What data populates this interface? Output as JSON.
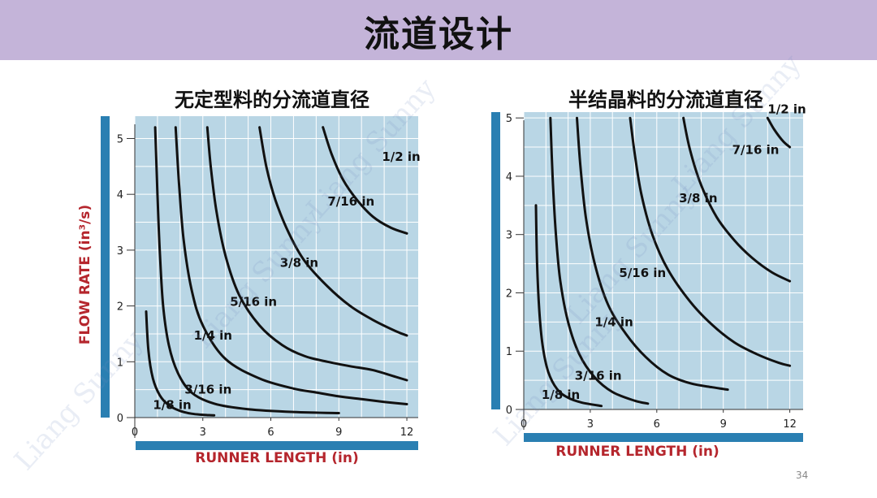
{
  "page": {
    "title": "流道设计",
    "page_number": "34"
  },
  "chart_data": [
    {
      "type": "line",
      "title": "无定型料的分流道直径",
      "xlabel": "RUNNER LENGTH (in)",
      "ylabel": "FLOW RATE (in³/s)",
      "xlim": [
        0,
        12.5
      ],
      "ylim": [
        0,
        5.4
      ],
      "xticks": [
        0,
        3,
        6,
        9,
        12
      ],
      "yticks": [
        0,
        1,
        2,
        3,
        4,
        5
      ],
      "series": [
        {
          "name": "1/8 in",
          "label": {
            "x": 0.8,
            "y": 0.15
          },
          "points": [
            [
              0.5,
              1.9
            ],
            [
              0.6,
              1.2
            ],
            [
              0.8,
              0.7
            ],
            [
              1.1,
              0.4
            ],
            [
              1.5,
              0.22
            ],
            [
              2.0,
              0.12
            ],
            [
              2.5,
              0.07
            ],
            [
              3.0,
              0.05
            ],
            [
              3.5,
              0.04
            ]
          ]
        },
        {
          "name": "3/16 in",
          "label": {
            "x": 2.2,
            "y": 0.43
          },
          "points": [
            [
              0.9,
              5.2
            ],
            [
              1.0,
              4.0
            ],
            [
              1.1,
              3.0
            ],
            [
              1.25,
              2.0
            ],
            [
              1.5,
              1.3
            ],
            [
              1.9,
              0.8
            ],
            [
              2.5,
              0.45
            ],
            [
              3.5,
              0.25
            ],
            [
              5.0,
              0.15
            ],
            [
              7.0,
              0.1
            ],
            [
              9.0,
              0.08
            ]
          ]
        },
        {
          "name": "1/4 in",
          "label": {
            "x": 2.6,
            "y": 1.4
          },
          "points": [
            [
              1.8,
              5.2
            ],
            [
              1.95,
              4.2
            ],
            [
              2.15,
              3.2
            ],
            [
              2.5,
              2.3
            ],
            [
              3.0,
              1.65
            ],
            [
              4.0,
              1.05
            ],
            [
              5.5,
              0.7
            ],
            [
              7.0,
              0.52
            ],
            [
              8.0,
              0.45
            ],
            [
              9.0,
              0.38
            ],
            [
              10.0,
              0.33
            ],
            [
              11.0,
              0.28
            ],
            [
              12.0,
              0.24
            ]
          ]
        },
        {
          "name": "5/16 in",
          "label": {
            "x": 4.2,
            "y": 2.0
          },
          "points": [
            [
              3.2,
              5.2
            ],
            [
              3.35,
              4.5
            ],
            [
              3.6,
              3.7
            ],
            [
              4.0,
              2.9
            ],
            [
              4.6,
              2.2
            ],
            [
              5.5,
              1.65
            ],
            [
              6.5,
              1.3
            ],
            [
              7.5,
              1.1
            ],
            [
              8.5,
              1.0
            ],
            [
              9.5,
              0.92
            ],
            [
              10.5,
              0.85
            ],
            [
              11.5,
              0.73
            ],
            [
              12.0,
              0.67
            ]
          ]
        },
        {
          "name": "3/8 in",
          "label": {
            "x": 6.4,
            "y": 2.7
          },
          "points": [
            [
              5.5,
              5.2
            ],
            [
              5.8,
              4.5
            ],
            [
              6.2,
              3.9
            ],
            [
              6.8,
              3.3
            ],
            [
              7.5,
              2.8
            ],
            [
              8.5,
              2.35
            ],
            [
              9.5,
              2.0
            ],
            [
              10.5,
              1.75
            ],
            [
              11.5,
              1.55
            ],
            [
              12.0,
              1.47
            ]
          ]
        },
        {
          "name": "7/16 in",
          "label": {
            "x": 8.5,
            "y": 3.8
          },
          "points": [
            [
              8.3,
              5.2
            ],
            [
              8.7,
              4.7
            ],
            [
              9.2,
              4.25
            ],
            [
              9.8,
              3.9
            ],
            [
              10.5,
              3.6
            ],
            [
              11.3,
              3.4
            ],
            [
              12.0,
              3.3
            ]
          ]
        },
        {
          "name": "1/2 in",
          "label": {
            "x": 10.9,
            "y": 4.6
          },
          "points": []
        }
      ]
    },
    {
      "type": "line",
      "title": "半结晶料的分流道直径",
      "xlabel": "RUNNER LENGTH (in)",
      "ylabel": "",
      "xlim": [
        0,
        12.6
      ],
      "ylim": [
        0,
        5.1
      ],
      "xticks": [
        0,
        3,
        6,
        9,
        12
      ],
      "yticks": [
        0,
        1,
        2,
        3,
        4,
        5
      ],
      "series": [
        {
          "name": "1/8 in",
          "label": {
            "x": 0.8,
            "y": 0.18
          },
          "points": [
            [
              0.55,
              3.5
            ],
            [
              0.6,
              2.5
            ],
            [
              0.7,
              1.7
            ],
            [
              0.85,
              1.1
            ],
            [
              1.1,
              0.65
            ],
            [
              1.5,
              0.35
            ],
            [
              2.0,
              0.2
            ],
            [
              2.6,
              0.12
            ],
            [
              3.5,
              0.06
            ]
          ]
        },
        {
          "name": "3/16 in",
          "label": {
            "x": 2.3,
            "y": 0.51
          },
          "points": [
            [
              1.2,
              5.0
            ],
            [
              1.3,
              4.0
            ],
            [
              1.45,
              3.0
            ],
            [
              1.65,
              2.2
            ],
            [
              2.0,
              1.5
            ],
            [
              2.5,
              0.95
            ],
            [
              3.2,
              0.55
            ],
            [
              4.0,
              0.3
            ],
            [
              5.0,
              0.15
            ],
            [
              5.6,
              0.1
            ]
          ]
        },
        {
          "name": "1/4 in",
          "label": {
            "x": 3.2,
            "y": 1.43
          },
          "points": [
            [
              2.4,
              5.0
            ],
            [
              2.55,
              4.2
            ],
            [
              2.8,
              3.3
            ],
            [
              3.2,
              2.5
            ],
            [
              3.8,
              1.8
            ],
            [
              4.6,
              1.3
            ],
            [
              5.5,
              0.9
            ],
            [
              6.5,
              0.6
            ],
            [
              7.5,
              0.45
            ],
            [
              8.5,
              0.38
            ],
            [
              9.2,
              0.34
            ]
          ]
        },
        {
          "name": "5/16 in",
          "label": {
            "x": 4.3,
            "y": 2.27
          },
          "points": [
            [
              4.8,
              5.0
            ],
            [
              5.0,
              4.4
            ],
            [
              5.3,
              3.7
            ],
            [
              5.8,
              3.0
            ],
            [
              6.5,
              2.4
            ],
            [
              7.5,
              1.85
            ],
            [
              8.5,
              1.45
            ],
            [
              9.5,
              1.15
            ],
            [
              10.5,
              0.95
            ],
            [
              11.5,
              0.8
            ],
            [
              12.0,
              0.75
            ]
          ]
        },
        {
          "name": "3/8 in",
          "label": {
            "x": 7.0,
            "y": 3.55
          },
          "points": [
            [
              7.2,
              5.0
            ],
            [
              7.5,
              4.45
            ],
            [
              8.0,
              3.85
            ],
            [
              8.7,
              3.3
            ],
            [
              9.5,
              2.9
            ],
            [
              10.3,
              2.6
            ],
            [
              11.2,
              2.35
            ],
            [
              12.0,
              2.2
            ]
          ]
        },
        {
          "name": "7/16 in",
          "label": {
            "x": 9.4,
            "y": 4.38
          },
          "points": [
            [
              11.0,
              5.0
            ],
            [
              11.3,
              4.8
            ],
            [
              11.7,
              4.6
            ],
            [
              12.0,
              4.5
            ]
          ]
        },
        {
          "name": "1/2 in",
          "label": {
            "x": 11.0,
            "y": 5.08
          },
          "points": []
        }
      ]
    }
  ]
}
